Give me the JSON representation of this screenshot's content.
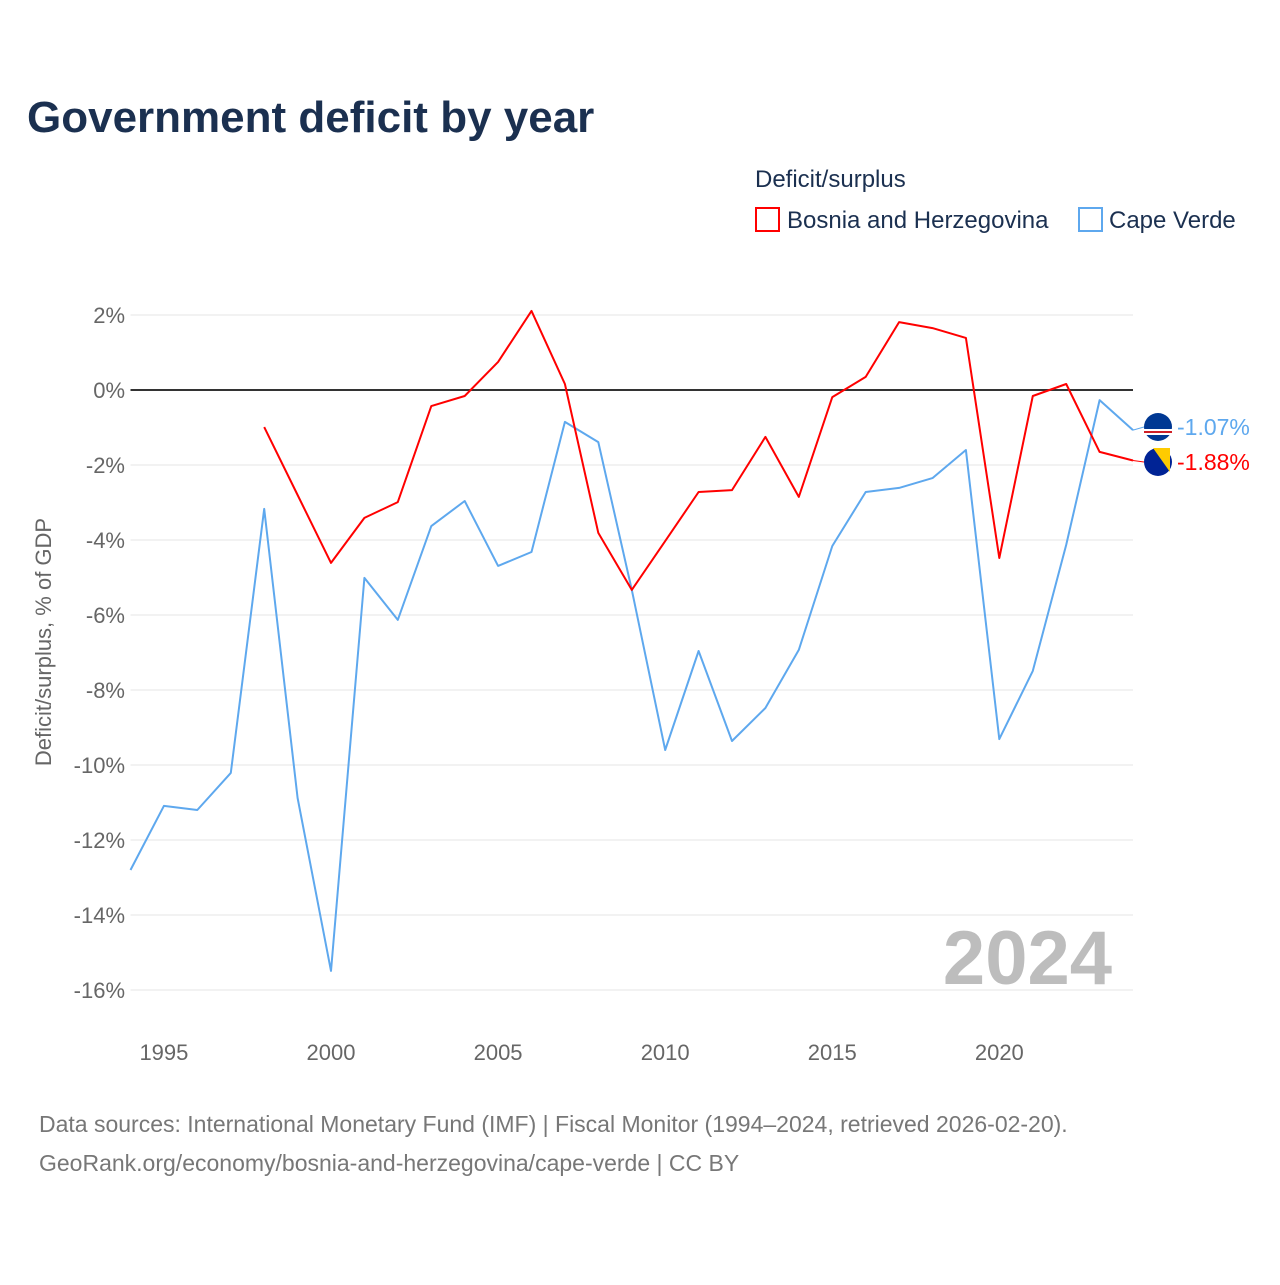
{
  "chart_data": {
    "type": "line",
    "title": "Government deficit by year",
    "legend_title": "Deficit/surplus",
    "legend_position": "top-right",
    "ylabel": "Deficit/surplus, % of GDP",
    "xlabel": "",
    "xlim": [
      1994,
      2024
    ],
    "ylim": [
      -16,
      2
    ],
    "x_ticks": [
      1995,
      2000,
      2005,
      2010,
      2015,
      2020
    ],
    "x_tick_labels": [
      "1995",
      "2000",
      "2005",
      "2010",
      "2015",
      "2020"
    ],
    "y_ticks": [
      2,
      0,
      -2,
      -4,
      -6,
      -8,
      -10,
      -12,
      -14,
      -16
    ],
    "y_tick_labels": [
      "2%",
      "0%",
      "-2%",
      "-4%",
      "-6%",
      "-8%",
      "-10%",
      "-12%",
      "-14%",
      "-16%"
    ],
    "grid": true,
    "year_watermark": "2024",
    "x": [
      1994,
      1995,
      1996,
      1997,
      1998,
      1999,
      2000,
      2001,
      2002,
      2003,
      2004,
      2005,
      2006,
      2007,
      2008,
      2009,
      2010,
      2011,
      2012,
      2013,
      2014,
      2015,
      2016,
      2017,
      2018,
      2019,
      2020,
      2021,
      2022,
      2023,
      2024
    ],
    "series": [
      {
        "name": "Bosnia and Herzegovina",
        "color": "#ff0000",
        "end_label": "-1.88%",
        "flag": "bosnia-flag",
        "values": [
          null,
          null,
          null,
          null,
          -0.99,
          -2.8,
          -4.61,
          -3.41,
          -2.99,
          -0.43,
          -0.16,
          0.75,
          2.11,
          0.16,
          -3.81,
          -5.33,
          -4.03,
          -2.72,
          -2.67,
          -1.25,
          -2.85,
          -0.19,
          0.35,
          1.81,
          1.65,
          1.39,
          -4.48,
          -0.16,
          0.16,
          -1.65,
          -1.88
        ]
      },
      {
        "name": "Cape Verde",
        "color": "#5ea8ee",
        "end_label": "-1.07%",
        "flag": "cape-verde-flag",
        "values": [
          -12.8,
          -11.09,
          -11.2,
          -10.21,
          -3.17,
          -10.88,
          -15.49,
          -5.01,
          -6.13,
          -3.63,
          -2.96,
          -4.69,
          -4.32,
          -0.85,
          -1.39,
          -5.33,
          -9.6,
          -6.96,
          -9.36,
          -8.48,
          -6.93,
          -4.16,
          -2.72,
          -2.61,
          -2.35,
          -1.6,
          -9.31,
          -7.49,
          -4.13,
          -0.27,
          -1.07
        ]
      }
    ]
  },
  "footer": {
    "line1": "Data sources: International Monetary Fund (IMF) | Fiscal Monitor (1994–2024, retrieved 2026-02-20).",
    "line2": "GeoRank.org/economy/bosnia-and-herzegovina/cape-verde | CC BY"
  }
}
